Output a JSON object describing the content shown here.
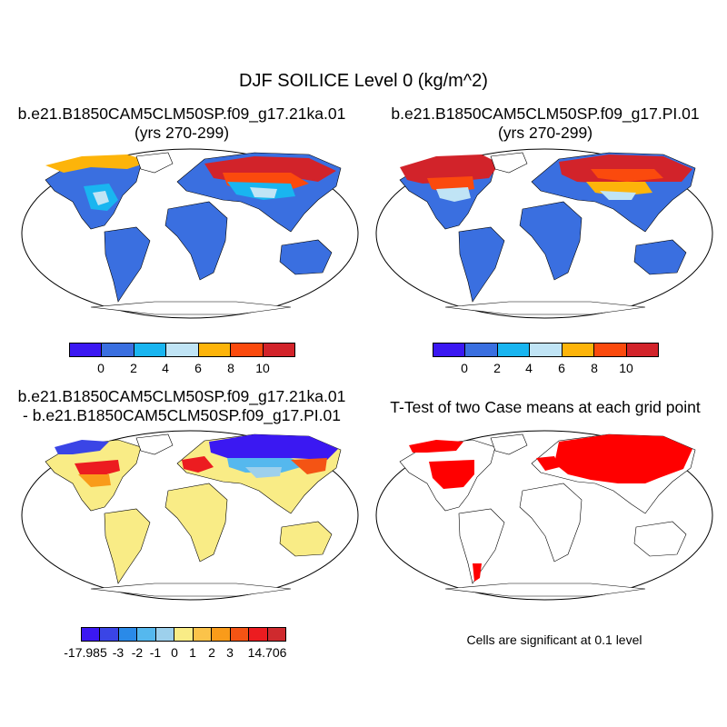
{
  "figure": {
    "title": "DJF SOILICE Level 0 (kg/m^2)"
  },
  "panels": [
    {
      "title_line1": "b.e21.B1850CAM5CLM50SP.f09_g17.21ka.01",
      "title_line2": "(yrs 270-299)"
    },
    {
      "title_line1": "b.e21.B1850CAM5CLM50SP.f09_g17.PI.01",
      "title_line2": "(yrs 270-299)"
    },
    {
      "title_line1": "b.e21.B1850CAM5CLM50SP.f09_g17.21ka.01",
      "title_line2": "- b.e21.B1850CAM5CLM50SP.f09_g17.PI.01"
    },
    {
      "title_line1": "T-Test of two Case means at each grid point",
      "note": "Cells are significant at 0.1 level"
    }
  ],
  "colorbars": {
    "absolute": {
      "colors": [
        "#3b18f2",
        "#3a6fe0",
        "#19b5f0",
        "#c0e4f5",
        "#fdb40a",
        "#fb4a0d",
        "#d2232a"
      ],
      "tick_labels": [
        "0",
        "2",
        "4",
        "6",
        "8",
        "10"
      ]
    },
    "difference": {
      "colors": [
        "#3b18f2",
        "#3a45e6",
        "#2a8ae8",
        "#55b8ee",
        "#9dd0ec",
        "#f9ec86",
        "#fbc34a",
        "#f99b1a",
        "#f45414",
        "#ec1c20",
        "#cf2a2e"
      ],
      "tick_labels": [
        "-17.985",
        "-3",
        "-2",
        "-1",
        "0",
        "1",
        "2",
        "3",
        "14.706"
      ]
    }
  },
  "legend": {
    "significance_color": "#ff0000"
  }
}
